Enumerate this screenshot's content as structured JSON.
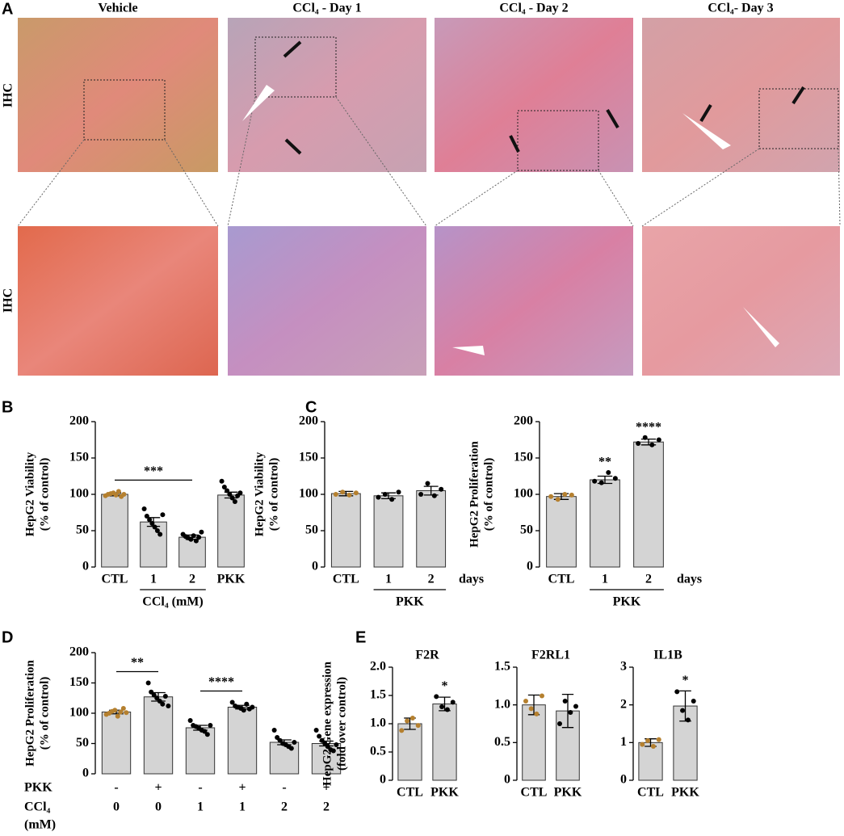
{
  "panel_labels": [
    "A",
    "B",
    "C",
    "D",
    "E"
  ],
  "images": {
    "headers": [
      "Vehicle",
      "CCl₄ - Day 1",
      "CCl₄ - Day 2",
      "CCl₄- Day 3"
    ],
    "row_labels": [
      "IHC",
      "IHC"
    ]
  },
  "chart_data": [
    {
      "type": "bar",
      "ylabel": "HepG2 Viability",
      "ylabel2": "(% of control)",
      "categories": [
        "CTL",
        "1",
        "2",
        "PKK"
      ],
      "values": [
        100,
        62,
        41,
        99
      ],
      "errors": [
        2,
        6,
        3,
        4
      ],
      "bar_color": "#d4d4d4",
      "point_colors": [
        "#b5802f",
        "#000000",
        "#000000",
        "#000000"
      ],
      "points": [
        [
          98,
          100,
          101,
          102,
          99,
          104,
          97,
          100
        ],
        [
          80,
          70,
          65,
          60,
          55,
          50,
          45,
          72
        ],
        [
          45,
          42,
          40,
          38,
          43,
          36,
          41,
          48
        ],
        [
          118,
          110,
          105,
          100,
          95,
          90,
          98,
          102
        ]
      ],
      "ylim": [
        0,
        200
      ],
      "yticks": [
        0,
        50,
        100,
        150,
        200
      ],
      "xgroup": {
        "label": "CCl₄ (mM)",
        "span": [
          1,
          2
        ]
      },
      "brackets": [
        {
          "label": "***",
          "span": [
            0,
            2
          ]
        }
      ]
    },
    {
      "type": "bar",
      "ylabel": "HepG2 Viability",
      "ylabel2": "(% of control)",
      "categories": [
        "CTL",
        "1",
        "2"
      ],
      "values": [
        101,
        98,
        105
      ],
      "errors": [
        3,
        4,
        6
      ],
      "bar_color": "#d4d4d4",
      "point_colors": [
        "#b5802f",
        "#000000",
        "#000000"
      ],
      "points": [
        [
          100,
          103,
          99,
          102
        ],
        [
          96,
          100,
          93,
          103
        ],
        [
          100,
          115,
          98,
          107
        ]
      ],
      "ylim": [
        0,
        200
      ],
      "yticks": [
        0,
        50,
        100,
        150,
        200
      ],
      "xgroup": {
        "label": "PKK",
        "span": [
          1,
          2
        ]
      },
      "xunit": "days"
    },
    {
      "type": "bar",
      "ylabel": "HepG2 Proliferation",
      "ylabel2": "(% of control)",
      "categories": [
        "CTL",
        "1",
        "2"
      ],
      "values": [
        97,
        120,
        172
      ],
      "errors": [
        4,
        5,
        4
      ],
      "bar_color": "#d4d4d4",
      "point_colors": [
        "#b5802f",
        "#000000",
        "#000000"
      ],
      "points": [
        [
          97,
          93,
          100,
          99
        ],
        [
          118,
          116,
          130,
          122
        ],
        [
          170,
          178,
          168,
          175
        ]
      ],
      "ylim": [
        0,
        200
      ],
      "yticks": [
        0,
        50,
        100,
        150,
        200
      ],
      "xgroup": {
        "label": "PKK",
        "span": [
          1,
          2
        ]
      },
      "xunit": "days",
      "significance": [
        null,
        "**",
        "****"
      ]
    },
    {
      "type": "bar",
      "ylabel": "HepG2 Proliferation",
      "ylabel2": "(% of control)",
      "values": [
        102,
        127,
        76,
        110,
        52,
        50
      ],
      "errors": [
        3,
        7,
        4,
        3,
        4,
        4
      ],
      "bar_color": "#d4d4d4",
      "point_colors": [
        "#b5802f",
        "#000000",
        "#000000",
        "#000000",
        "#000000",
        "#000000"
      ],
      "points": [
        [
          98,
          100,
          103,
          105,
          95,
          102,
          108,
          101
        ],
        [
          150,
          135,
          130,
          125,
          120,
          115,
          128,
          112
        ],
        [
          88,
          80,
          78,
          75,
          72,
          70,
          65,
          80
        ],
        [
          118,
          112,
          110,
          108,
          105,
          115,
          107,
          110
        ],
        [
          72,
          60,
          55,
          50,
          48,
          45,
          42,
          52
        ],
        [
          72,
          62,
          55,
          50,
          45,
          40,
          38,
          48
        ]
      ],
      "ylim": [
        0,
        200
      ],
      "yticks": [
        0,
        50,
        100,
        150,
        200
      ],
      "xrows": [
        {
          "label": "PKK",
          "values": [
            "-",
            "+",
            "-",
            "+",
            "-",
            "+"
          ]
        },
        {
          "label": "CCl₄",
          "sublabel": "(mM)",
          "values": [
            "0",
            "0",
            "1",
            "1",
            "2",
            "2"
          ]
        }
      ],
      "brackets": [
        {
          "label": "**",
          "span": [
            0,
            1
          ]
        },
        {
          "label": "****",
          "span": [
            2,
            3
          ]
        }
      ]
    },
    {
      "type": "bar",
      "title": "F2R",
      "ylabel": "HepG2 Gene expression",
      "ylabel2": "(fold over control)",
      "categories": [
        "CTL",
        "PKK"
      ],
      "values": [
        1.0,
        1.35
      ],
      "errors": [
        0.1,
        0.12
      ],
      "bar_color": "#d4d4d4",
      "point_colors": [
        "#b5802f",
        "#000000"
      ],
      "points": [
        [
          0.88,
          1.05,
          1.1,
          0.97
        ],
        [
          1.48,
          1.3,
          1.25,
          1.38
        ]
      ],
      "ylim": [
        0,
        2
      ],
      "yticks": [
        0,
        0.5,
        {
          "value": 1,
          "label": "1.0"
        },
        1.5,
        {
          "value": 2,
          "label": "2.0"
        }
      ],
      "significance": [
        null,
        "*"
      ]
    },
    {
      "type": "bar",
      "title": "F2RL1",
      "categories": [
        "CTL",
        "PKK"
      ],
      "values": [
        1.0,
        0.92
      ],
      "errors": [
        0.13,
        0.22
      ],
      "bar_color": "#d4d4d4",
      "point_colors": [
        "#b5802f",
        "#000000"
      ],
      "points": [
        [
          1.05,
          0.95,
          0.88,
          1.12
        ],
        [
          0.75,
          1.05,
          0.9,
          0.98
        ]
      ],
      "ylim": [
        0,
        1.5
      ],
      "yticks": [
        0,
        0.5,
        {
          "value": 1,
          "label": "1.0"
        },
        1.5
      ]
    },
    {
      "type": "bar",
      "title": "IL1B",
      "categories": [
        "CTL",
        "PKK"
      ],
      "values": [
        1.0,
        1.97
      ],
      "errors": [
        0.1,
        0.4
      ],
      "bar_color": "#d4d4d4",
      "point_colors": [
        "#b5802f",
        "#000000"
      ],
      "points": [
        [
          0.95,
          1.05,
          0.9,
          1.08
        ],
        [
          2.35,
          1.85,
          1.6,
          2.1
        ]
      ],
      "ylim": [
        0,
        3
      ],
      "yticks": [
        0,
        1,
        2,
        3
      ],
      "significance": [
        null,
        "*"
      ]
    }
  ]
}
